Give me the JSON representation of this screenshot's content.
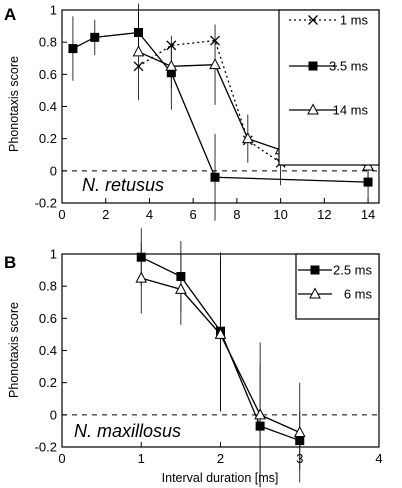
{
  "chart_data": [
    {
      "type": "line",
      "panel": "A",
      "annotation": "N. retusus",
      "xlabel": "",
      "ylabel": "Phonotaxis score",
      "xlim": [
        0,
        14.5
      ],
      "ylim": [
        -0.2,
        1.0
      ],
      "xticks": [
        0,
        2,
        4,
        6,
        8,
        10,
        12,
        14
      ],
      "yticks": [
        -0.2,
        0,
        0.2,
        0.4,
        0.6,
        0.8,
        1
      ],
      "xtick_labels": [
        "0",
        "2",
        "4",
        "6",
        "8",
        "10",
        "12",
        "14"
      ],
      "ytick_labels": [
        "-0.2",
        "0",
        "0.2",
        "0.4",
        "0.6",
        "0.8",
        "1"
      ],
      "reference_line": 0,
      "legend_position": "top-right",
      "series": [
        {
          "name": "1 ms",
          "marker": "x",
          "line_style": "dotted",
          "x": [
            3.5,
            5,
            7,
            8.5,
            10,
            12,
            14
          ],
          "y": [
            0.65,
            0.78,
            0.81,
            0.19,
            0.05,
            0.07,
            0.04
          ],
          "err": [
            null,
            null,
            null,
            null,
            null,
            null,
            null
          ]
        },
        {
          "name": "3.5 ms",
          "marker": "square-filled",
          "line_style": "solid",
          "x": [
            0.5,
            1.5,
            3.5,
            5,
            7,
            14
          ],
          "y": [
            0.76,
            0.83,
            0.86,
            0.61,
            -0.04,
            -0.07
          ],
          "err": [
            0.2,
            0.11,
            0.13,
            0.23,
            0.27,
            0.11
          ]
        },
        {
          "name": "14 ms",
          "marker": "triangle-open",
          "line_style": "solid",
          "x": [
            3.5,
            5,
            7,
            8.5,
            10,
            14
          ],
          "y": [
            0.74,
            0.65,
            0.66,
            0.2,
            0.13,
            0.03
          ],
          "err": [
            0.3,
            0.14,
            0.25,
            0.15,
            0.22,
            0.08
          ]
        }
      ]
    },
    {
      "type": "line",
      "panel": "B",
      "annotation": "N. maxillosus",
      "xlabel": "Interval duration [ms]",
      "ylabel": "Phonotaxis score",
      "xlim": [
        0,
        4
      ],
      "ylim": [
        -0.2,
        1.0
      ],
      "xticks": [
        0,
        1,
        2,
        3,
        4
      ],
      "yticks": [
        -0.2,
        0,
        0.2,
        0.4,
        0.6,
        0.8,
        1
      ],
      "xtick_labels": [
        "0",
        "1",
        "2",
        "3",
        "4"
      ],
      "ytick_labels": [
        "-0.2",
        "0",
        "0.2",
        "0.4",
        "0.6",
        "0.8",
        "1"
      ],
      "reference_line": 0,
      "legend_position": "top-right",
      "series": [
        {
          "name": "2.5 ms",
          "marker": "square-filled",
          "line_style": "solid",
          "x": [
            1,
            1.5,
            2,
            2.5,
            3
          ],
          "y": [
            0.98,
            0.86,
            0.52,
            -0.07,
            -0.16
          ],
          "err": [
            0.18,
            0.22,
            0.49,
            0.38,
            0.18
          ]
        },
        {
          "name": "6 ms",
          "marker": "triangle-open",
          "line_style": "solid",
          "x": [
            1,
            1.5,
            2,
            2.5,
            3
          ],
          "y": [
            0.85,
            0.78,
            0.5,
            0.0,
            -0.11
          ],
          "err": [
            0.22,
            0.22,
            0.48,
            0.45,
            0.31
          ]
        }
      ]
    }
  ]
}
